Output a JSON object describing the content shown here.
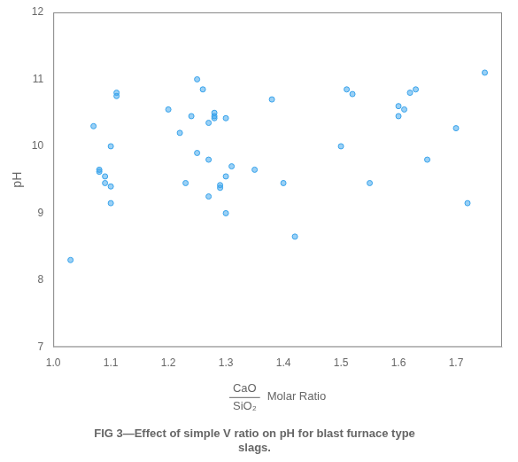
{
  "chart_data": {
    "type": "scatter",
    "title": [
      "FIG 3—Effect of simple V ratio on pH for blast furnace type",
      "slags."
    ],
    "xlabel": {
      "numerator": "CaO",
      "denominator": "SiO₂",
      "text": "Molar Ratio"
    },
    "ylabel": "pH",
    "x": [
      1.03,
      1.07,
      1.08,
      1.08,
      1.09,
      1.09,
      1.1,
      1.1,
      1.1,
      1.11,
      1.11,
      1.2,
      1.22,
      1.23,
      1.24,
      1.25,
      1.25,
      1.26,
      1.27,
      1.27,
      1.27,
      1.28,
      1.28,
      1.28,
      1.29,
      1.29,
      1.3,
      1.3,
      1.3,
      1.31,
      1.35,
      1.38,
      1.4,
      1.42,
      1.5,
      1.51,
      1.52,
      1.55,
      1.6,
      1.6,
      1.61,
      1.62,
      1.63,
      1.65,
      1.7,
      1.72,
      1.75
    ],
    "values": [
      8.3,
      10.3,
      9.65,
      9.62,
      9.55,
      9.45,
      9.4,
      9.15,
      10.0,
      10.75,
      10.8,
      10.55,
      10.2,
      9.45,
      10.45,
      9.9,
      11.0,
      10.85,
      10.35,
      9.8,
      9.25,
      10.42,
      10.45,
      10.5,
      9.42,
      9.38,
      9.0,
      9.55,
      10.42,
      9.7,
      9.65,
      10.7,
      9.45,
      8.65,
      10.0,
      10.85,
      10.78,
      9.45,
      10.45,
      10.6,
      10.55,
      10.8,
      10.85,
      9.8,
      10.27,
      9.15,
      11.1
    ],
    "xlim": [
      1.0,
      1.78
    ],
    "xticks": [
      {
        "value": 1.0,
        "label": "1.0"
      },
      1.1,
      1.2,
      1.3,
      1.4,
      1.5,
      1.6,
      1.7
    ],
    "ylim": [
      7,
      12
    ],
    "yticks": [
      7,
      8,
      9,
      10,
      11,
      12
    ],
    "grid": false
  }
}
